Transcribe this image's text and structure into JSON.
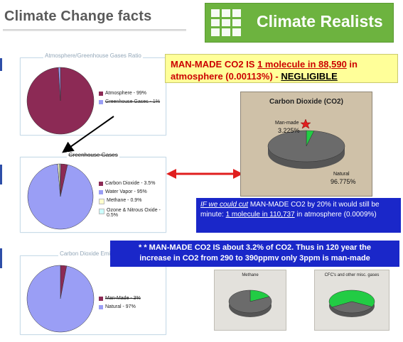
{
  "header": {
    "left_title": "Climate Change facts",
    "brand": "Climate Realists"
  },
  "colors": {
    "brand_green": "#6db33f",
    "maroon": "#8c2a55",
    "lavender": "#9a9ef5",
    "highlight_blue": "#1a27c9",
    "arrow_red": "#e01e1e",
    "callout_yellow": "#ffff99"
  },
  "yellow_callout": {
    "line1a": "MAN-MADE CO2 IS ",
    "line1b": "1 molecule in 88,590",
    "line1c": " in",
    "line2a": "atmosphere (0.00113%) - ",
    "line2b": "NEGLIGIBLE"
  },
  "blue_callout1": {
    "part1": "IF we could cut",
    "part2": " MAN-MADE CO2 by 20% it would still be minute: ",
    "part3": "1 molecule in 110,737",
    "part4": " in atmosphere (0.0009%)"
  },
  "blue_callout2": {
    "line1": "* * MAN-MADE  CO2  IS  about  3.2% of CO2.  Thus in 120 year the",
    "line2": "increase in CO2 from 290 to 390ppmv only 3ppm is man-made"
  },
  "chart_data": [
    {
      "type": "pie",
      "title": "Atmosphere/Greenhouse Gases Ratio",
      "categories": [
        "Atmosphere - 99%",
        "Greenhouse Gases - 1%"
      ],
      "values": [
        99,
        1
      ],
      "colors": [
        "#8c2a55",
        "#9a9ef5"
      ],
      "legend": "right"
    },
    {
      "type": "pie",
      "title": "Greenhouse Gases",
      "categories": [
        "Carbon Dioxide - 3.5%",
        "Water Vapor - 95%",
        "Methane - 0.9%",
        "Ozone & Nitrous Oxide - 0.5%"
      ],
      "values": [
        3.5,
        95,
        0.9,
        0.5
      ],
      "colors": [
        "#8c2a55",
        "#9a9ef5",
        "#ffffcc",
        "#ccffff"
      ],
      "legend": "right"
    },
    {
      "type": "pie",
      "title": "Carbon Dioxide Emissions",
      "categories": [
        "Man-Made - 3%",
        "Natural - 97%"
      ],
      "values": [
        3,
        97
      ],
      "colors": [
        "#8c2a55",
        "#9a9ef5"
      ],
      "legend": "right"
    },
    {
      "type": "pie",
      "title": "Carbon Dioxide (CO2)",
      "categories": [
        "Man-made",
        "Natural"
      ],
      "labels": [
        "3.225%",
        "96.775%"
      ],
      "values": [
        3.225,
        96.775
      ],
      "colors": [
        "#22cc44",
        "#6b6b6b"
      ]
    },
    {
      "type": "pie",
      "title": "Methane",
      "values": [
        18,
        82
      ],
      "colors": [
        "#22cc44",
        "#6b6b6b"
      ]
    },
    {
      "type": "pie",
      "title": "CFC's and other misc. gases",
      "values": [
        66,
        34
      ],
      "colors": [
        "#22cc44",
        "#6b6b6b"
      ]
    }
  ]
}
